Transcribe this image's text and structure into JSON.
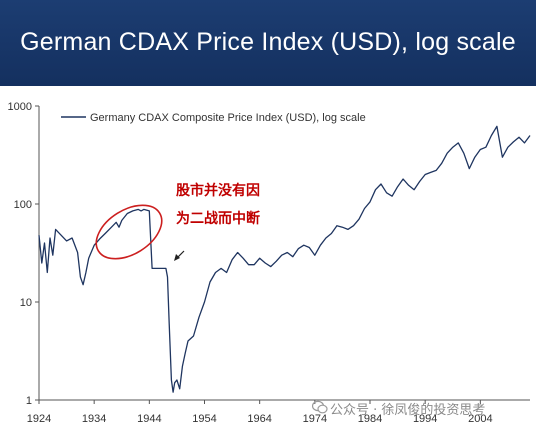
{
  "header": {
    "title": "German CDAX Price Index (USD), log scale"
  },
  "annotation": {
    "line1": "股市并没有因",
    "line2": "为二战而中断"
  },
  "watermark": {
    "text": "公众号 · 徐凤俊的投资思考"
  },
  "colors": {
    "header_bg": "#1a3a6e",
    "series": "#1f3560",
    "annotation_text": "#c00000",
    "circle": "#cc1f1f"
  },
  "chart_data": {
    "type": "line",
    "yscale": "log",
    "ylim": [
      1,
      1000
    ],
    "xlim": [
      1924,
      2013
    ],
    "yticks": [
      1,
      10,
      100,
      1000
    ],
    "ytick_labels": [
      "1",
      "10",
      "100",
      "1000"
    ],
    "xticks": [
      1924,
      1934,
      1944,
      1954,
      1964,
      1974,
      1984,
      1994,
      2004
    ],
    "xtick_labels": [
      "1924",
      "1934",
      "1944",
      "1954",
      "1964",
      "1974",
      "1984",
      "1994",
      "2004"
    ],
    "legend": "top-left",
    "grid": false,
    "series": [
      {
        "name": "Germany CDAX Composite Price Index (USD), log scale",
        "color": "#1f3560",
        "x": [
          1924,
          1924.5,
          1925,
          1925.5,
          1926,
          1926.5,
          1927,
          1928,
          1929,
          1930,
          1931,
          1931.5,
          1932,
          1932.5,
          1933,
          1934,
          1935,
          1936,
          1937,
          1938,
          1938.5,
          1939,
          1940,
          1941,
          1942,
          1942.5,
          1943,
          1944,
          1944.5,
          1945,
          1946,
          1947,
          1947.3,
          1947.6,
          1948,
          1948.3,
          1948.6,
          1949,
          1949.5,
          1950,
          1950.5,
          1951,
          1952,
          1953,
          1954,
          1955,
          1956,
          1957,
          1958,
          1959,
          1960,
          1961,
          1962,
          1963,
          1964,
          1965,
          1966,
          1967,
          1968,
          1969,
          1970,
          1971,
          1972,
          1973,
          1974,
          1975,
          1976,
          1977,
          1978,
          1979,
          1980,
          1981,
          1982,
          1983,
          1984,
          1985,
          1986,
          1987,
          1988,
          1989,
          1990,
          1991,
          1992,
          1993,
          1994,
          1995,
          1996,
          1997,
          1998,
          1999,
          2000,
          2001,
          2002,
          2003,
          2004,
          2005,
          2006,
          2007,
          2008,
          2009,
          2010,
          2011,
          2012,
          2013
        ],
        "y": [
          48,
          25,
          40,
          20,
          45,
          30,
          55,
          48,
          42,
          45,
          32,
          18,
          15,
          20,
          28,
          38,
          44,
          50,
          57,
          65,
          58,
          68,
          80,
          85,
          88,
          85,
          88,
          85,
          22,
          22,
          22,
          22,
          18,
          6,
          1.6,
          1.2,
          1.5,
          1.6,
          1.3,
          2.2,
          3,
          4,
          4.5,
          7,
          10,
          16,
          20,
          22,
          20,
          27,
          32,
          28,
          24,
          24,
          28,
          25,
          23,
          26,
          30,
          32,
          29,
          35,
          38,
          36,
          30,
          38,
          45,
          50,
          60,
          58,
          55,
          60,
          70,
          90,
          105,
          140,
          160,
          130,
          120,
          150,
          180,
          155,
          140,
          170,
          200,
          210,
          220,
          260,
          330,
          380,
          420,
          330,
          230,
          300,
          360,
          380,
          500,
          620,
          300,
          380,
          430,
          480,
          420,
          500
        ]
      }
    ]
  }
}
